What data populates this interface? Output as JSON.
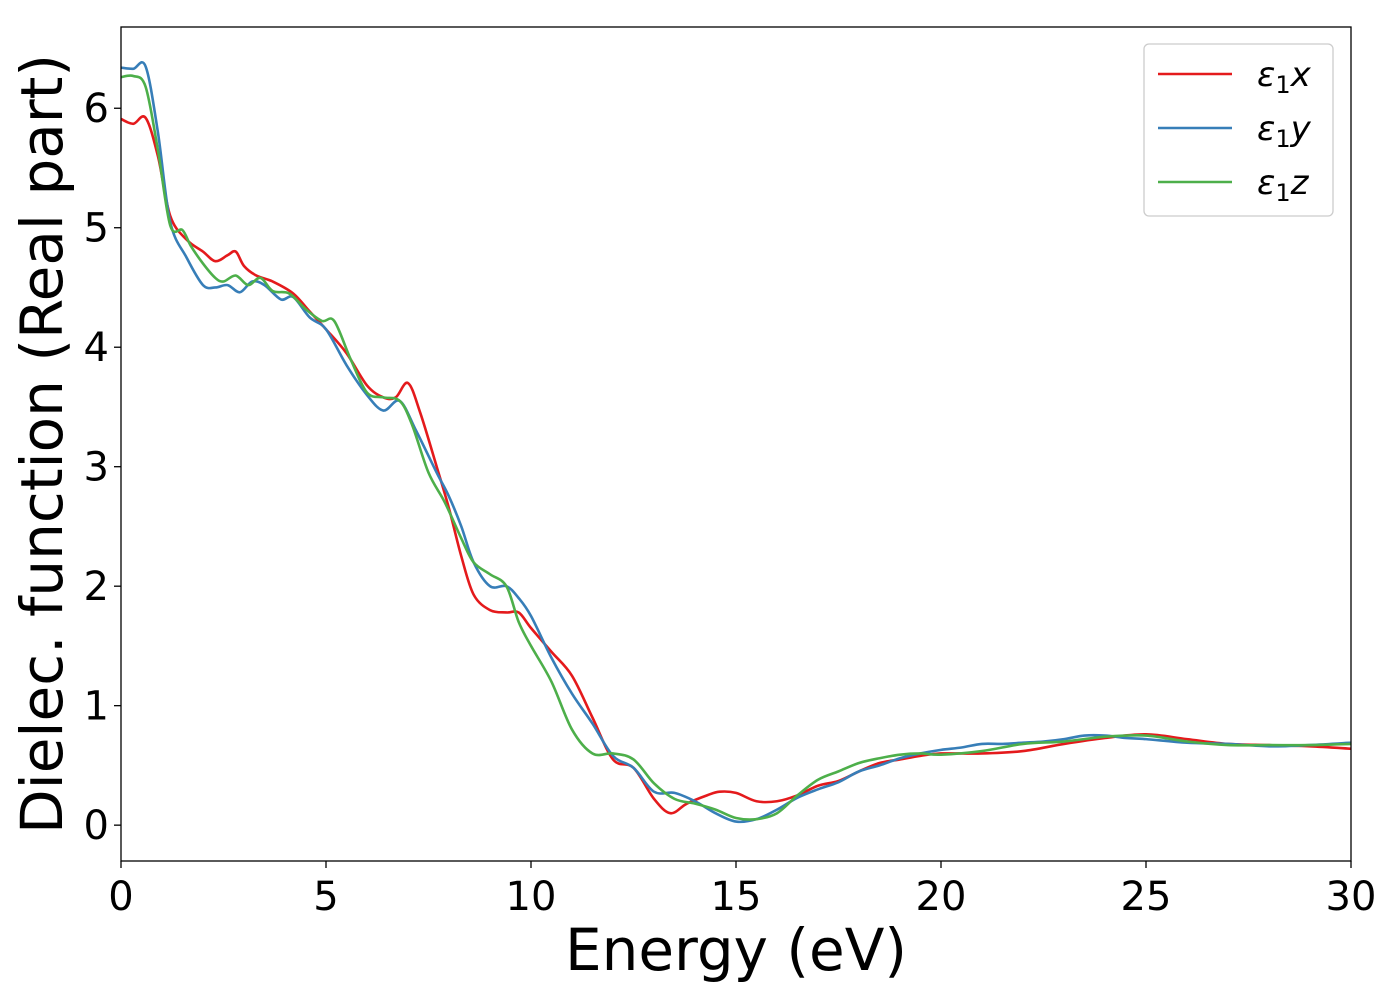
{
  "chart_data": {
    "type": "line",
    "title": "",
    "xlabel": "Energy (eV)",
    "ylabel": "Dielec. function (Real part)",
    "xlim": [
      0,
      30
    ],
    "ylim": [
      -0.3,
      6.68
    ],
    "xticks": [
      0,
      5,
      10,
      15,
      20,
      25,
      30
    ],
    "yticks": [
      0,
      1,
      2,
      3,
      4,
      5,
      6
    ],
    "grid": false,
    "legend_position": "top-right",
    "series": [
      {
        "name": "ε1x",
        "label_base": "ε",
        "label_sub": "1",
        "label_tail": "x",
        "color": "#e41a1c",
        "points": [
          [
            0,
            5.91
          ],
          [
            0.3,
            5.87
          ],
          [
            0.6,
            5.92
          ],
          [
            0.9,
            5.6
          ],
          [
            1.2,
            5.1
          ],
          [
            1.6,
            4.9
          ],
          [
            2.0,
            4.8
          ],
          [
            2.3,
            4.72
          ],
          [
            2.6,
            4.77
          ],
          [
            2.8,
            4.8
          ],
          [
            3.0,
            4.68
          ],
          [
            3.3,
            4.6
          ],
          [
            3.7,
            4.55
          ],
          [
            4.2,
            4.45
          ],
          [
            4.6,
            4.3
          ],
          [
            5.0,
            4.15
          ],
          [
            5.5,
            3.95
          ],
          [
            6.0,
            3.68
          ],
          [
            6.4,
            3.58
          ],
          [
            6.7,
            3.58
          ],
          [
            7.0,
            3.7
          ],
          [
            7.3,
            3.45
          ],
          [
            7.7,
            3.0
          ],
          [
            8.0,
            2.65
          ],
          [
            8.3,
            2.25
          ],
          [
            8.6,
            1.93
          ],
          [
            9.0,
            1.8
          ],
          [
            9.4,
            1.78
          ],
          [
            9.7,
            1.78
          ],
          [
            10.0,
            1.65
          ],
          [
            10.5,
            1.45
          ],
          [
            11.0,
            1.25
          ],
          [
            11.5,
            0.9
          ],
          [
            12.0,
            0.55
          ],
          [
            12.5,
            0.48
          ],
          [
            13.0,
            0.22
          ],
          [
            13.4,
            0.1
          ],
          [
            13.8,
            0.18
          ],
          [
            14.3,
            0.25
          ],
          [
            14.6,
            0.28
          ],
          [
            15.0,
            0.27
          ],
          [
            15.5,
            0.2
          ],
          [
            16.0,
            0.2
          ],
          [
            16.5,
            0.25
          ],
          [
            17.0,
            0.33
          ],
          [
            17.5,
            0.37
          ],
          [
            18.0,
            0.45
          ],
          [
            18.5,
            0.52
          ],
          [
            19.0,
            0.55
          ],
          [
            19.5,
            0.58
          ],
          [
            20.0,
            0.6
          ],
          [
            21.0,
            0.6
          ],
          [
            22.0,
            0.62
          ],
          [
            23.0,
            0.68
          ],
          [
            24.0,
            0.73
          ],
          [
            25.0,
            0.76
          ],
          [
            26.0,
            0.72
          ],
          [
            27.0,
            0.68
          ],
          [
            28.0,
            0.67
          ],
          [
            29.0,
            0.66
          ],
          [
            30.0,
            0.64
          ]
        ]
      },
      {
        "name": "ε1y",
        "label_base": "ε",
        "label_sub": "1",
        "label_tail": "y",
        "color": "#377eb8",
        "points": [
          [
            0,
            6.34
          ],
          [
            0.3,
            6.33
          ],
          [
            0.6,
            6.35
          ],
          [
            0.9,
            5.8
          ],
          [
            1.2,
            5.05
          ],
          [
            1.6,
            4.75
          ],
          [
            2.0,
            4.52
          ],
          [
            2.3,
            4.5
          ],
          [
            2.6,
            4.52
          ],
          [
            2.9,
            4.46
          ],
          [
            3.2,
            4.55
          ],
          [
            3.5,
            4.52
          ],
          [
            3.9,
            4.4
          ],
          [
            4.2,
            4.42
          ],
          [
            4.6,
            4.25
          ],
          [
            5.0,
            4.15
          ],
          [
            5.5,
            3.85
          ],
          [
            6.0,
            3.6
          ],
          [
            6.4,
            3.47
          ],
          [
            6.8,
            3.55
          ],
          [
            7.2,
            3.3
          ],
          [
            7.7,
            2.95
          ],
          [
            8.0,
            2.75
          ],
          [
            8.3,
            2.5
          ],
          [
            8.6,
            2.2
          ],
          [
            9.0,
            2.0
          ],
          [
            9.4,
            2.0
          ],
          [
            9.7,
            1.9
          ],
          [
            10.0,
            1.75
          ],
          [
            10.5,
            1.4
          ],
          [
            11.0,
            1.1
          ],
          [
            11.5,
            0.85
          ],
          [
            12.0,
            0.58
          ],
          [
            12.5,
            0.48
          ],
          [
            13.0,
            0.28
          ],
          [
            13.5,
            0.27
          ],
          [
            14.0,
            0.2
          ],
          [
            14.5,
            0.1
          ],
          [
            15.0,
            0.03
          ],
          [
            15.5,
            0.05
          ],
          [
            16.0,
            0.13
          ],
          [
            16.5,
            0.23
          ],
          [
            17.0,
            0.3
          ],
          [
            17.5,
            0.36
          ],
          [
            18.0,
            0.45
          ],
          [
            18.5,
            0.5
          ],
          [
            19.0,
            0.56
          ],
          [
            19.5,
            0.6
          ],
          [
            20.0,
            0.63
          ],
          [
            20.5,
            0.65
          ],
          [
            21.0,
            0.68
          ],
          [
            21.5,
            0.68
          ],
          [
            22.0,
            0.69
          ],
          [
            22.5,
            0.7
          ],
          [
            23.0,
            0.72
          ],
          [
            23.5,
            0.75
          ],
          [
            24.0,
            0.75
          ],
          [
            24.5,
            0.73
          ],
          [
            25.0,
            0.72
          ],
          [
            26.0,
            0.69
          ],
          [
            27.0,
            0.68
          ],
          [
            28.0,
            0.66
          ],
          [
            29.0,
            0.67
          ],
          [
            30.0,
            0.69
          ]
        ]
      },
      {
        "name": "ε1z",
        "label_base": "ε",
        "label_sub": "1",
        "label_tail": "z",
        "color": "#4daf4a",
        "points": [
          [
            0,
            6.26
          ],
          [
            0.3,
            6.27
          ],
          [
            0.6,
            6.18
          ],
          [
            0.9,
            5.65
          ],
          [
            1.2,
            5.02
          ],
          [
            1.5,
            4.98
          ],
          [
            1.7,
            4.85
          ],
          [
            2.0,
            4.7
          ],
          [
            2.3,
            4.58
          ],
          [
            2.5,
            4.55
          ],
          [
            2.8,
            4.6
          ],
          [
            3.1,
            4.52
          ],
          [
            3.4,
            4.58
          ],
          [
            3.7,
            4.47
          ],
          [
            4.1,
            4.45
          ],
          [
            4.5,
            4.32
          ],
          [
            4.9,
            4.22
          ],
          [
            5.2,
            4.22
          ],
          [
            5.6,
            3.9
          ],
          [
            6.0,
            3.62
          ],
          [
            6.4,
            3.58
          ],
          [
            6.8,
            3.55
          ],
          [
            7.1,
            3.35
          ],
          [
            7.5,
            2.95
          ],
          [
            7.9,
            2.7
          ],
          [
            8.3,
            2.4
          ],
          [
            8.6,
            2.2
          ],
          [
            9.0,
            2.1
          ],
          [
            9.4,
            2.0
          ],
          [
            9.7,
            1.7
          ],
          [
            10.0,
            1.5
          ],
          [
            10.5,
            1.2
          ],
          [
            11.0,
            0.8
          ],
          [
            11.5,
            0.6
          ],
          [
            12.0,
            0.6
          ],
          [
            12.5,
            0.55
          ],
          [
            13.0,
            0.35
          ],
          [
            13.5,
            0.22
          ],
          [
            14.0,
            0.18
          ],
          [
            14.5,
            0.13
          ],
          [
            15.0,
            0.06
          ],
          [
            15.5,
            0.05
          ],
          [
            16.0,
            0.1
          ],
          [
            16.5,
            0.25
          ],
          [
            17.0,
            0.38
          ],
          [
            17.5,
            0.45
          ],
          [
            18.0,
            0.52
          ],
          [
            18.5,
            0.56
          ],
          [
            19.0,
            0.59
          ],
          [
            19.5,
            0.6
          ],
          [
            20.0,
            0.59
          ],
          [
            21.0,
            0.62
          ],
          [
            22.0,
            0.68
          ],
          [
            23.0,
            0.7
          ],
          [
            24.0,
            0.74
          ],
          [
            25.0,
            0.75
          ],
          [
            26.0,
            0.7
          ],
          [
            27.0,
            0.67
          ],
          [
            28.0,
            0.67
          ],
          [
            29.0,
            0.67
          ],
          [
            30.0,
            0.68
          ]
        ]
      }
    ]
  }
}
